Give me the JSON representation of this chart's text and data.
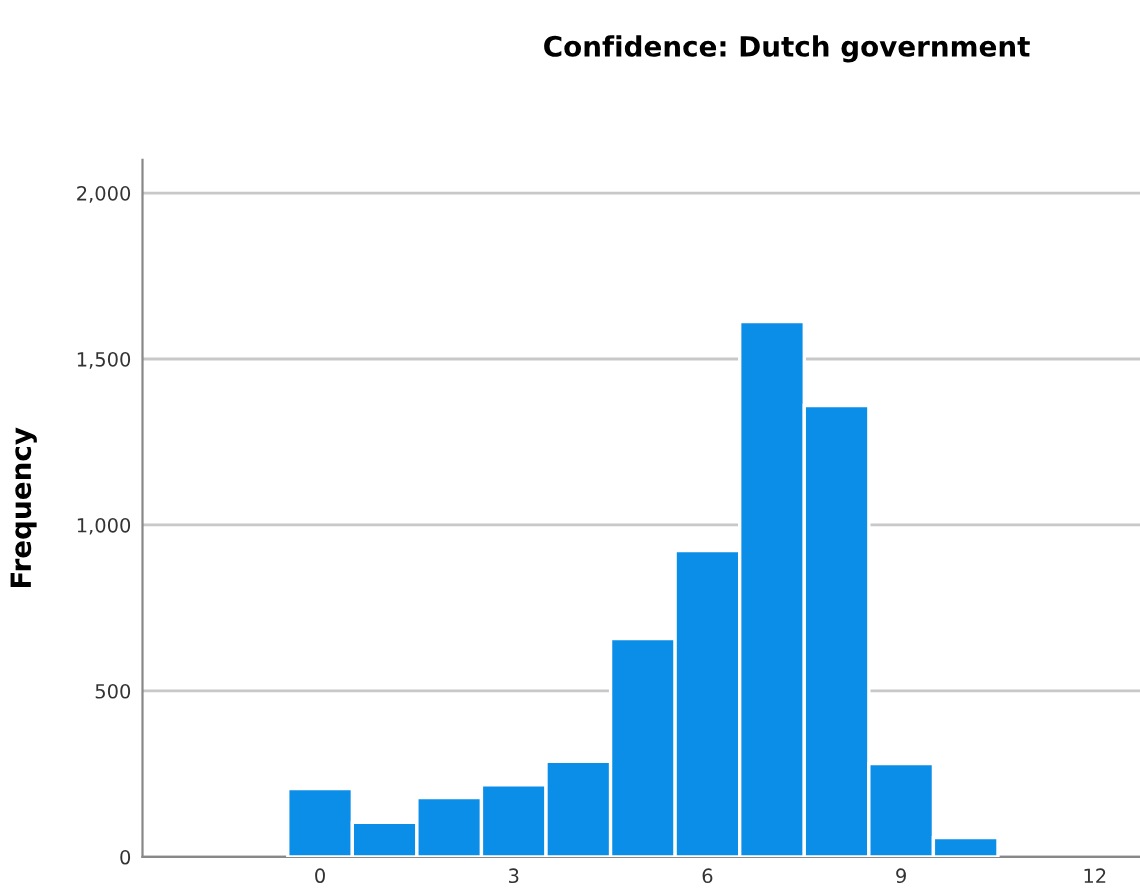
{
  "chart_data": {
    "type": "histogram",
    "title": "Confidence: Dutch government",
    "ylabel": "Frequency",
    "bins": [
      -0.5,
      0.5,
      1.5,
      2.5,
      3.5,
      4.5,
      5.5,
      6.5,
      7.5,
      8.5,
      9.5,
      10.5
    ],
    "values": [
      206,
      104,
      179,
      217,
      288,
      658,
      923,
      1613,
      1360,
      281,
      58
    ],
    "color": "#0a8ee8",
    "xlim": [
      -2.75,
      12.7
    ],
    "xticks": [
      0,
      3,
      6,
      9,
      12
    ],
    "ylim": [
      0,
      2100
    ],
    "yticks": [
      {
        "value": 0,
        "label": "0"
      },
      {
        "value": 500,
        "label": "500"
      },
      {
        "value": 1000,
        "label": "1,000"
      },
      {
        "value": 1500,
        "label": "1,500"
      },
      {
        "value": 2000,
        "label": "2,000"
      }
    ],
    "grid": "y"
  }
}
